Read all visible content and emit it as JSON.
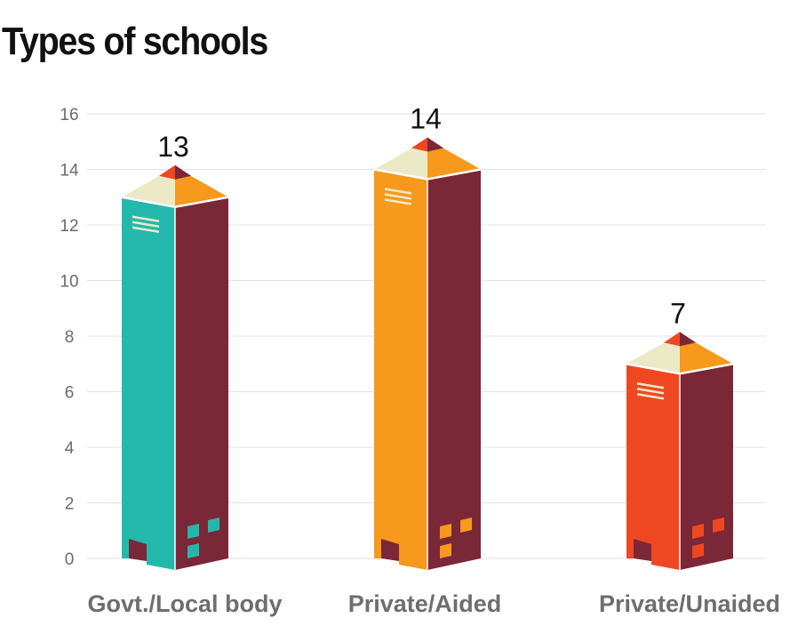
{
  "title": "Types of schools",
  "chart_data": {
    "type": "bar",
    "title": "Types of schools",
    "categories": [
      "Govt./Local body",
      "Private/Aided",
      "Private/Unaided"
    ],
    "values": [
      13,
      14,
      7
    ],
    "ylim": [
      0,
      16
    ],
    "yticks": [
      0,
      2,
      4,
      6,
      8,
      10,
      12,
      14,
      16
    ],
    "grid": true,
    "xlabel": "",
    "ylabel": "",
    "colors": {
      "front": [
        "#24b8ad",
        "#f6991d",
        "#ef4722"
      ],
      "side": "#7a2737",
      "roof_left": "#ece9c7",
      "roof_right": "#f6991d",
      "peak_left": "#ef4722",
      "peak_right": "#7a2737",
      "grid": "#e3e3e3"
    }
  }
}
